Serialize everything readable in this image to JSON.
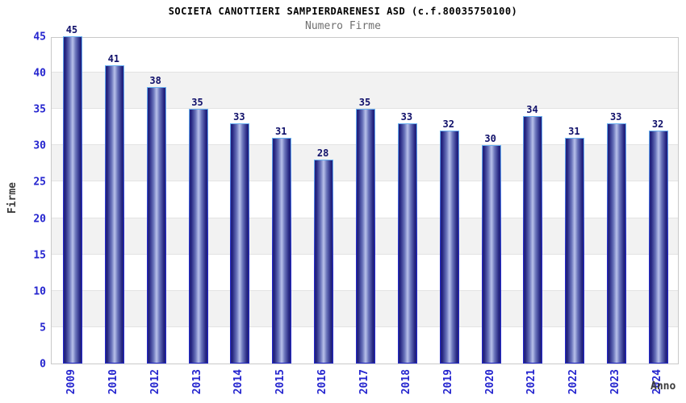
{
  "header": {
    "title": "SOCIETA CANOTTIERI SAMPIERDARENESI ASD (c.f.80035750100)",
    "subtitle": "Numero Firme"
  },
  "axes": {
    "y_label": "Firme",
    "x_label": "Anno"
  },
  "chart_data": {
    "type": "bar",
    "title": "SOCIETA CANOTTIERI SAMPIERDARENESI ASD (c.f.80035750100)",
    "subtitle": "Numero Firme",
    "xlabel": "Anno",
    "ylabel": "Firme",
    "categories": [
      "2009",
      "2010",
      "2012",
      "2013",
      "2014",
      "2015",
      "2016",
      "2017",
      "2018",
      "2019",
      "2020",
      "2021",
      "2022",
      "2023",
      "2024"
    ],
    "values": [
      45,
      41,
      38,
      35,
      33,
      31,
      28,
      35,
      33,
      32,
      30,
      34,
      31,
      33,
      32
    ],
    "ylim": [
      0,
      45
    ],
    "yticks": [
      0,
      5,
      10,
      15,
      20,
      25,
      30,
      35,
      40,
      45
    ],
    "grid": "horizontal gray bands every 5 units (5-10, 15-20, 25-30, 35-40)",
    "legend": "none",
    "bar_label_position": "above"
  },
  "colors": {
    "title_text": "#000000",
    "subtitle_text": "#707070",
    "axis_tick_text": "#2525cf",
    "bar_value_text": "#10106a",
    "axis_title_text": "#3c3c3c",
    "plot_border": "#c9c9c9",
    "band_gray": "#f2f2f2",
    "gridline": "#e3e3e3",
    "bar_edge_dark": "#23237f",
    "bar_mid": "#6a74bb",
    "bar_highlight": "#b8c1ea",
    "bar_border_top": "#6ab2f1",
    "bar_border_bottom": "#2328c9",
    "background": "#ffffff"
  }
}
